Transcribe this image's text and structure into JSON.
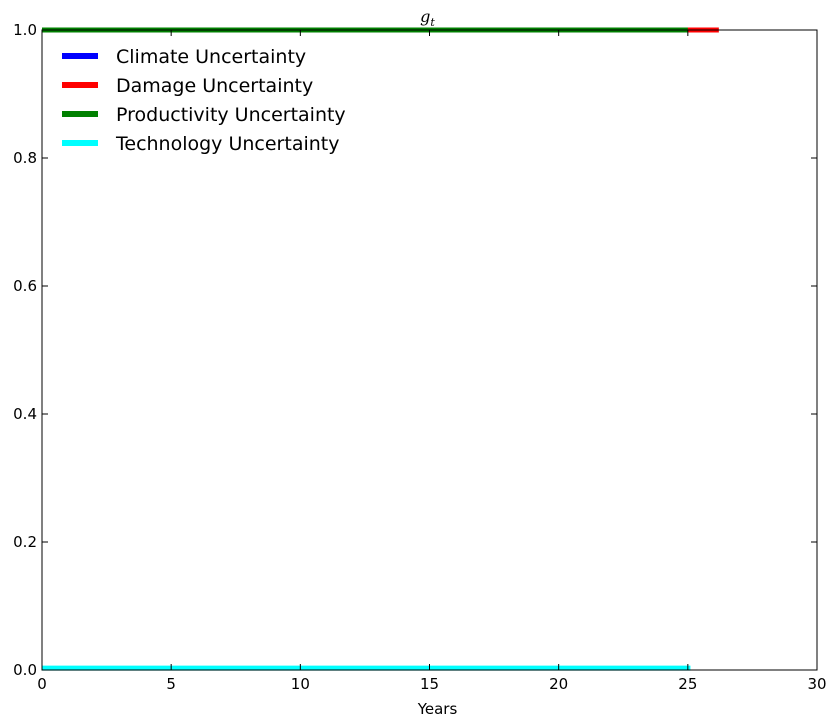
{
  "chart_data": {
    "type": "line",
    "title": "g",
    "title_subscript": "t",
    "xlabel": "Years",
    "ylabel": "",
    "xlim": [
      0,
      30
    ],
    "ylim": [
      0,
      1
    ],
    "xticks": [
      0,
      5,
      10,
      15,
      20,
      25,
      30
    ],
    "yticks": [
      0.0,
      0.2,
      0.4,
      0.6,
      0.8,
      1.0
    ],
    "xtick_labels": [
      "0",
      "5",
      "10",
      "15",
      "20",
      "25",
      "30"
    ],
    "ytick_labels": [
      "0.0",
      "0.2",
      "0.4",
      "0.6",
      "0.8",
      "1.0"
    ],
    "grid": false,
    "legend_position": "top-left",
    "series": [
      {
        "name": "Climate Uncertainty",
        "color": "#0000ff",
        "x": [
          0,
          25
        ],
        "y": [
          1.0,
          1.0
        ]
      },
      {
        "name": "Damage Uncertainty",
        "color": "#ff0000",
        "x": [
          0,
          26.2
        ],
        "y": [
          1.0,
          1.0
        ]
      },
      {
        "name": "Productivity Uncertainty",
        "color": "#008000",
        "x": [
          0,
          25
        ],
        "y": [
          1.0,
          1.0
        ]
      },
      {
        "name": "Technology Uncertainty",
        "color": "#00ffff",
        "x": [
          0,
          25.1
        ],
        "y": [
          0.003,
          0.003
        ]
      }
    ]
  }
}
